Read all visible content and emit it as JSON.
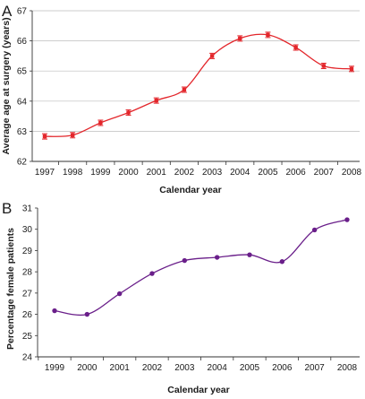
{
  "chart_data": [
    {
      "panel_label": "A",
      "type": "line",
      "xlabel": "Calendar year",
      "ylabel": "Average age at surgery (years)",
      "x": [
        "1997",
        "1998",
        "1999",
        "2000",
        "2001",
        "2002",
        "2003",
        "2004",
        "2005",
        "2006",
        "2007",
        "2008"
      ],
      "series": [
        {
          "values": [
            62.83,
            62.87,
            63.28,
            63.62,
            64.02,
            64.38,
            65.5,
            66.08,
            66.2,
            65.78,
            65.17,
            65.07
          ],
          "color": "#e3262b"
        }
      ],
      "ylim": [
        62,
        67
      ],
      "yticks": [
        "62",
        "63",
        "64",
        "65",
        "66",
        "67"
      ],
      "grid": true,
      "markers": "square with error bars",
      "smooth": true
    },
    {
      "panel_label": "B",
      "type": "line",
      "xlabel": "Calendar year",
      "ylabel": "Percentage female patients",
      "x": [
        "1999",
        "2000",
        "2001",
        "2002",
        "2003",
        "2004",
        "2005",
        "2006",
        "2007",
        "2008"
      ],
      "series": [
        {
          "values": [
            26.17,
            26.0,
            26.97,
            27.92,
            28.53,
            28.68,
            28.8,
            28.48,
            29.97,
            30.45
          ],
          "color": "#6a1f8a"
        }
      ],
      "ylim": [
        24,
        31
      ],
      "yticks": [
        "24",
        "25",
        "26",
        "27",
        "28",
        "29",
        "30",
        "31"
      ],
      "grid": false,
      "markers": "dot",
      "smooth": true
    }
  ]
}
